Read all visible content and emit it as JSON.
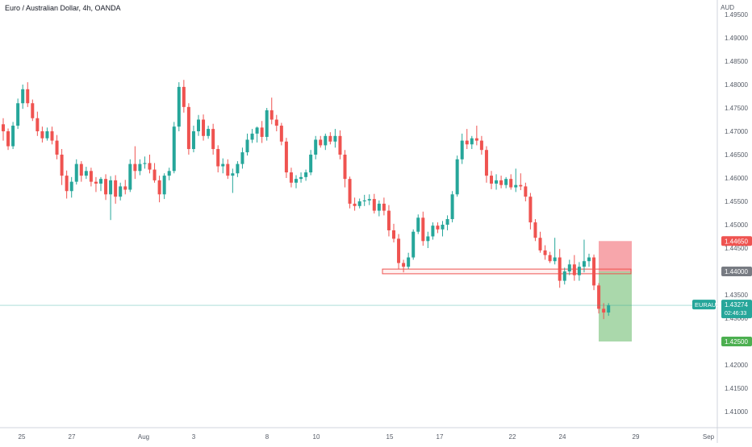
{
  "header": {
    "symbol_title": "Euro / Australian Dollar, 4h, OANDA",
    "currency": "AUD"
  },
  "colors": {
    "up": "#26a69a",
    "down": "#ef5350",
    "stop_zone": "#f7a1a6",
    "target_zone": "#a5d6a7",
    "price_line": "#26a69a",
    "level_line": "#ef5350",
    "label_dark": "#777b82",
    "axis_text": "#555b66"
  },
  "chart_data": {
    "type": "candlestick",
    "title": "Euro / Australian Dollar, 4h, OANDA",
    "ylim": [
      1.405,
      1.4965
    ],
    "y_ticks": [
      "1.49500",
      "1.49000",
      "1.48500",
      "1.48000",
      "1.47500",
      "1.47000",
      "1.46500",
      "1.46000",
      "1.45500",
      "1.45000",
      "1.44500",
      "1.44000",
      "1.43500",
      "1.43000",
      "1.42500",
      "1.42000",
      "1.41500",
      "1.41000"
    ],
    "x_ticks": [
      {
        "label": "25",
        "pos": 0
      },
      {
        "label": "27",
        "pos": 0.1043
      },
      {
        "label": "Aug",
        "pos": 0.2461
      },
      {
        "label": "3",
        "pos": 0.3052
      },
      {
        "label": "8",
        "pos": 0.4864
      },
      {
        "label": "10",
        "pos": 0.5903
      },
      {
        "label": "15",
        "pos": 0.7525
      },
      {
        "label": "17",
        "pos": 0.8578
      },
      {
        "label": "22",
        "pos": 1.0
      },
      {
        "label": "24",
        "pos": 1.1087
      },
      {
        "label": "29",
        "pos": 1.3
      },
      {
        "label": "Sep",
        "pos": 1.5
      }
    ],
    "candles": [
      [
        1.4715,
        1.4728,
        1.468,
        1.47
      ],
      [
        1.47,
        1.4706,
        1.466,
        1.4668
      ],
      [
        1.4668,
        1.472,
        1.4662,
        1.4712
      ],
      [
        1.4712,
        1.477,
        1.4705,
        1.476
      ],
      [
        1.476,
        1.48,
        1.4748,
        1.479
      ],
      [
        1.479,
        1.4805,
        1.4752,
        1.476
      ],
      [
        1.476,
        1.4768,
        1.4722,
        1.4728
      ],
      [
        1.4728,
        1.4742,
        1.469,
        1.47
      ],
      [
        1.47,
        1.471,
        1.4676,
        1.4685
      ],
      [
        1.4685,
        1.4708,
        1.468,
        1.47
      ],
      [
        1.47,
        1.471,
        1.4672,
        1.468
      ],
      [
        1.468,
        1.4692,
        1.464,
        1.465
      ],
      [
        1.465,
        1.4662,
        1.4585,
        1.4605
      ],
      [
        1.4605,
        1.4616,
        1.4556,
        1.4572
      ],
      [
        1.4572,
        1.4602,
        1.4558,
        1.4592
      ],
      [
        1.4592,
        1.464,
        1.4586,
        1.463
      ],
      [
        1.463,
        1.4636,
        1.4592,
        1.4605
      ],
      [
        1.4605,
        1.4624,
        1.4598,
        1.4615
      ],
      [
        1.4615,
        1.4622,
        1.4582,
        1.4592
      ],
      [
        1.4592,
        1.4602,
        1.457,
        1.4588
      ],
      [
        1.4588,
        1.4602,
        1.4572,
        1.4598
      ],
      [
        1.4598,
        1.4608,
        1.4553,
        1.4565
      ],
      [
        1.4565,
        1.4604,
        1.451,
        1.4595
      ],
      [
        1.4595,
        1.4606,
        1.4545,
        1.456
      ],
      [
        1.456,
        1.459,
        1.4552,
        1.4582
      ],
      [
        1.4582,
        1.4596,
        1.4565,
        1.4575
      ],
      [
        1.4575,
        1.464,
        1.457,
        1.463
      ],
      [
        1.463,
        1.4668,
        1.4598,
        1.4615
      ],
      [
        1.4615,
        1.464,
        1.4606,
        1.463
      ],
      [
        1.463,
        1.4646,
        1.462,
        1.4632
      ],
      [
        1.4632,
        1.465,
        1.461,
        1.4618
      ],
      [
        1.4618,
        1.4632,
        1.459,
        1.4595
      ],
      [
        1.4595,
        1.4605,
        1.4548,
        1.4565
      ],
      [
        1.4565,
        1.461,
        1.4555,
        1.4605
      ],
      [
        1.4605,
        1.4622,
        1.4595,
        1.4615
      ],
      [
        1.4615,
        1.472,
        1.461,
        1.471
      ],
      [
        1.471,
        1.4805,
        1.47,
        1.4795
      ],
      [
        1.4795,
        1.481,
        1.474,
        1.4752
      ],
      [
        1.4752,
        1.476,
        1.465,
        1.4662
      ],
      [
        1.4662,
        1.4712,
        1.4655,
        1.47
      ],
      [
        1.47,
        1.4735,
        1.469,
        1.4725
      ],
      [
        1.4725,
        1.4736,
        1.468,
        1.469
      ],
      [
        1.469,
        1.4712,
        1.4684,
        1.4705
      ],
      [
        1.4705,
        1.4716,
        1.465,
        1.4662
      ],
      [
        1.4662,
        1.467,
        1.4612,
        1.4625
      ],
      [
        1.4625,
        1.4642,
        1.461,
        1.463
      ],
      [
        1.463,
        1.464,
        1.4598,
        1.4605
      ],
      [
        1.4605,
        1.462,
        1.4568,
        1.461
      ],
      [
        1.461,
        1.4636,
        1.4602,
        1.463
      ],
      [
        1.463,
        1.4665,
        1.462,
        1.4655
      ],
      [
        1.4655,
        1.4695,
        1.4648,
        1.4682
      ],
      [
        1.4682,
        1.4705,
        1.4675,
        1.4695
      ],
      [
        1.4695,
        1.471,
        1.4676,
        1.4708
      ],
      [
        1.4708,
        1.4722,
        1.4675,
        1.4688
      ],
      [
        1.4688,
        1.475,
        1.468,
        1.4745
      ],
      [
        1.4745,
        1.4772,
        1.4715,
        1.4725
      ],
      [
        1.4725,
        1.4735,
        1.47,
        1.4712
      ],
      [
        1.4712,
        1.4718,
        1.467,
        1.4678
      ],
      [
        1.4678,
        1.4686,
        1.46,
        1.4612
      ],
      [
        1.4612,
        1.4622,
        1.458,
        1.459
      ],
      [
        1.459,
        1.4606,
        1.4578,
        1.4598
      ],
      [
        1.4598,
        1.4612,
        1.459,
        1.4602
      ],
      [
        1.4602,
        1.4618,
        1.4594,
        1.4612
      ],
      [
        1.4612,
        1.466,
        1.4606,
        1.465
      ],
      [
        1.465,
        1.469,
        1.464,
        1.4682
      ],
      [
        1.4682,
        1.469,
        1.4665,
        1.467
      ],
      [
        1.467,
        1.4695,
        1.466,
        1.469
      ],
      [
        1.469,
        1.4698,
        1.4672,
        1.4678
      ],
      [
        1.4678,
        1.4705,
        1.4665,
        1.469
      ],
      [
        1.469,
        1.4702,
        1.464,
        1.465
      ],
      [
        1.465,
        1.466,
        1.458,
        1.4598
      ],
      [
        1.4598,
        1.4603,
        1.4535,
        1.4545
      ],
      [
        1.4545,
        1.4558,
        1.453,
        1.454
      ],
      [
        1.454,
        1.4556,
        1.4535,
        1.455
      ],
      [
        1.455,
        1.4564,
        1.454,
        1.4552
      ],
      [
        1.4552,
        1.4565,
        1.4542,
        1.4555
      ],
      [
        1.4555,
        1.4566,
        1.4524,
        1.453
      ],
      [
        1.453,
        1.4552,
        1.4518,
        1.4545
      ],
      [
        1.4545,
        1.4558,
        1.452,
        1.453
      ],
      [
        1.453,
        1.4542,
        1.4475,
        1.4488
      ],
      [
        1.4488,
        1.4502,
        1.4462,
        1.447
      ],
      [
        1.447,
        1.448,
        1.4405,
        1.4418
      ],
      [
        1.4418,
        1.4425,
        1.4398,
        1.441
      ],
      [
        1.441,
        1.444,
        1.4405,
        1.443
      ],
      [
        1.443,
        1.449,
        1.4425,
        1.4485
      ],
      [
        1.4485,
        1.4522,
        1.448,
        1.4515
      ],
      [
        1.4515,
        1.4528,
        1.4455,
        1.4465
      ],
      [
        1.4465,
        1.4485,
        1.445,
        1.4475
      ],
      [
        1.4475,
        1.4505,
        1.4468,
        1.4498
      ],
      [
        1.4498,
        1.4505,
        1.4482,
        1.449
      ],
      [
        1.449,
        1.4508,
        1.4475,
        1.45
      ],
      [
        1.45,
        1.452,
        1.4488,
        1.4512
      ],
      [
        1.4512,
        1.4572,
        1.4505,
        1.4565
      ],
      [
        1.4565,
        1.4648,
        1.456,
        1.464
      ],
      [
        1.464,
        1.4695,
        1.463,
        1.468
      ],
      [
        1.468,
        1.4705,
        1.4662,
        1.4672
      ],
      [
        1.4672,
        1.469,
        1.4662,
        1.4685
      ],
      [
        1.4685,
        1.4712,
        1.467,
        1.468
      ],
      [
        1.468,
        1.469,
        1.465,
        1.466
      ],
      [
        1.466,
        1.4668,
        1.459,
        1.4605
      ],
      [
        1.4605,
        1.4615,
        1.4576,
        1.4588
      ],
      [
        1.4588,
        1.4608,
        1.4575,
        1.4595
      ],
      [
        1.4595,
        1.4605,
        1.4578,
        1.4585
      ],
      [
        1.4585,
        1.4602,
        1.4578,
        1.4598
      ],
      [
        1.4598,
        1.4608,
        1.4575,
        1.458
      ],
      [
        1.458,
        1.462,
        1.457,
        1.4585
      ],
      [
        1.4585,
        1.461,
        1.4574,
        1.4582
      ],
      [
        1.4582,
        1.459,
        1.455,
        1.456
      ],
      [
        1.456,
        1.4568,
        1.449,
        1.4505
      ],
      [
        1.4505,
        1.4512,
        1.4465,
        1.4472
      ],
      [
        1.4472,
        1.4485,
        1.444,
        1.4445
      ],
      [
        1.4445,
        1.4456,
        1.4425,
        1.4435
      ],
      [
        1.4435,
        1.4442,
        1.4418,
        1.4422
      ],
      [
        1.4422,
        1.4472,
        1.4415,
        1.443
      ],
      [
        1.443,
        1.4448,
        1.4365,
        1.438
      ],
      [
        1.438,
        1.4408,
        1.4372,
        1.44
      ],
      [
        1.44,
        1.4425,
        1.4392,
        1.4415
      ],
      [
        1.4415,
        1.4435,
        1.438,
        1.4392
      ],
      [
        1.4392,
        1.442,
        1.438,
        1.441
      ],
      [
        1.441,
        1.4468,
        1.4398,
        1.4422
      ],
      [
        1.4422,
        1.4438,
        1.441,
        1.443
      ],
      [
        1.443,
        1.4436,
        1.436,
        1.437
      ],
      [
        1.437,
        1.4375,
        1.431,
        1.432
      ],
      [
        1.432,
        1.4332,
        1.4298,
        1.4312
      ],
      [
        1.4312,
        1.4332,
        1.4305,
        1.43274
      ]
    ],
    "trade_setup": {
      "entry": 1.44,
      "stop": 1.4465,
      "target": 1.425,
      "level_box": [
        1.4395,
        1.4405
      ],
      "current_price": 1.43274
    },
    "price_labels": [
      {
        "text": "1.44650",
        "value": 1.4465,
        "role": "stop"
      },
      {
        "text": "1.44000",
        "value": 1.44,
        "role": "entry"
      },
      {
        "text": "1.42500",
        "value": 1.425,
        "role": "target"
      }
    ],
    "current": {
      "symbol": "EURAUD",
      "price": "1.43274",
      "countdown": "02:46:33"
    }
  }
}
